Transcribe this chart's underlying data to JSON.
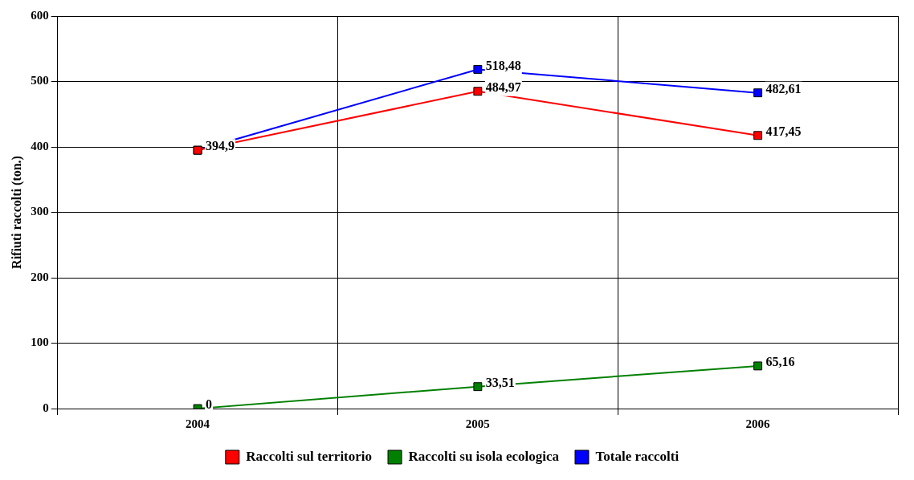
{
  "chart_data": {
    "type": "line",
    "ylabel": "Rifiuti raccolti (ton.)",
    "categories": [
      "2004",
      "2005",
      "2006"
    ],
    "series": [
      {
        "name": "Raccolti sul territorio",
        "color": "#ff0000",
        "values": [
          394.9,
          484.97,
          417.45
        ],
        "value_labels": [
          null,
          "484,97",
          "417,45"
        ]
      },
      {
        "name": "Raccolti su isola ecologica",
        "color": "#008000",
        "values": [
          0,
          33.51,
          65.16
        ],
        "value_labels": [
          "0",
          "33,51",
          "65,16"
        ]
      },
      {
        "name": "Totale raccolti",
        "color": "#0000ff",
        "values": [
          394.9,
          518.48,
          482.61
        ],
        "value_labels": [
          "394,9",
          "518,48",
          "482,61"
        ]
      }
    ],
    "ylim": [
      0,
      600
    ],
    "yticks": [
      0,
      100,
      200,
      300,
      400,
      500,
      600
    ],
    "grid": true,
    "legend": "bottom",
    "marker": "square",
    "line_style": "solid"
  }
}
